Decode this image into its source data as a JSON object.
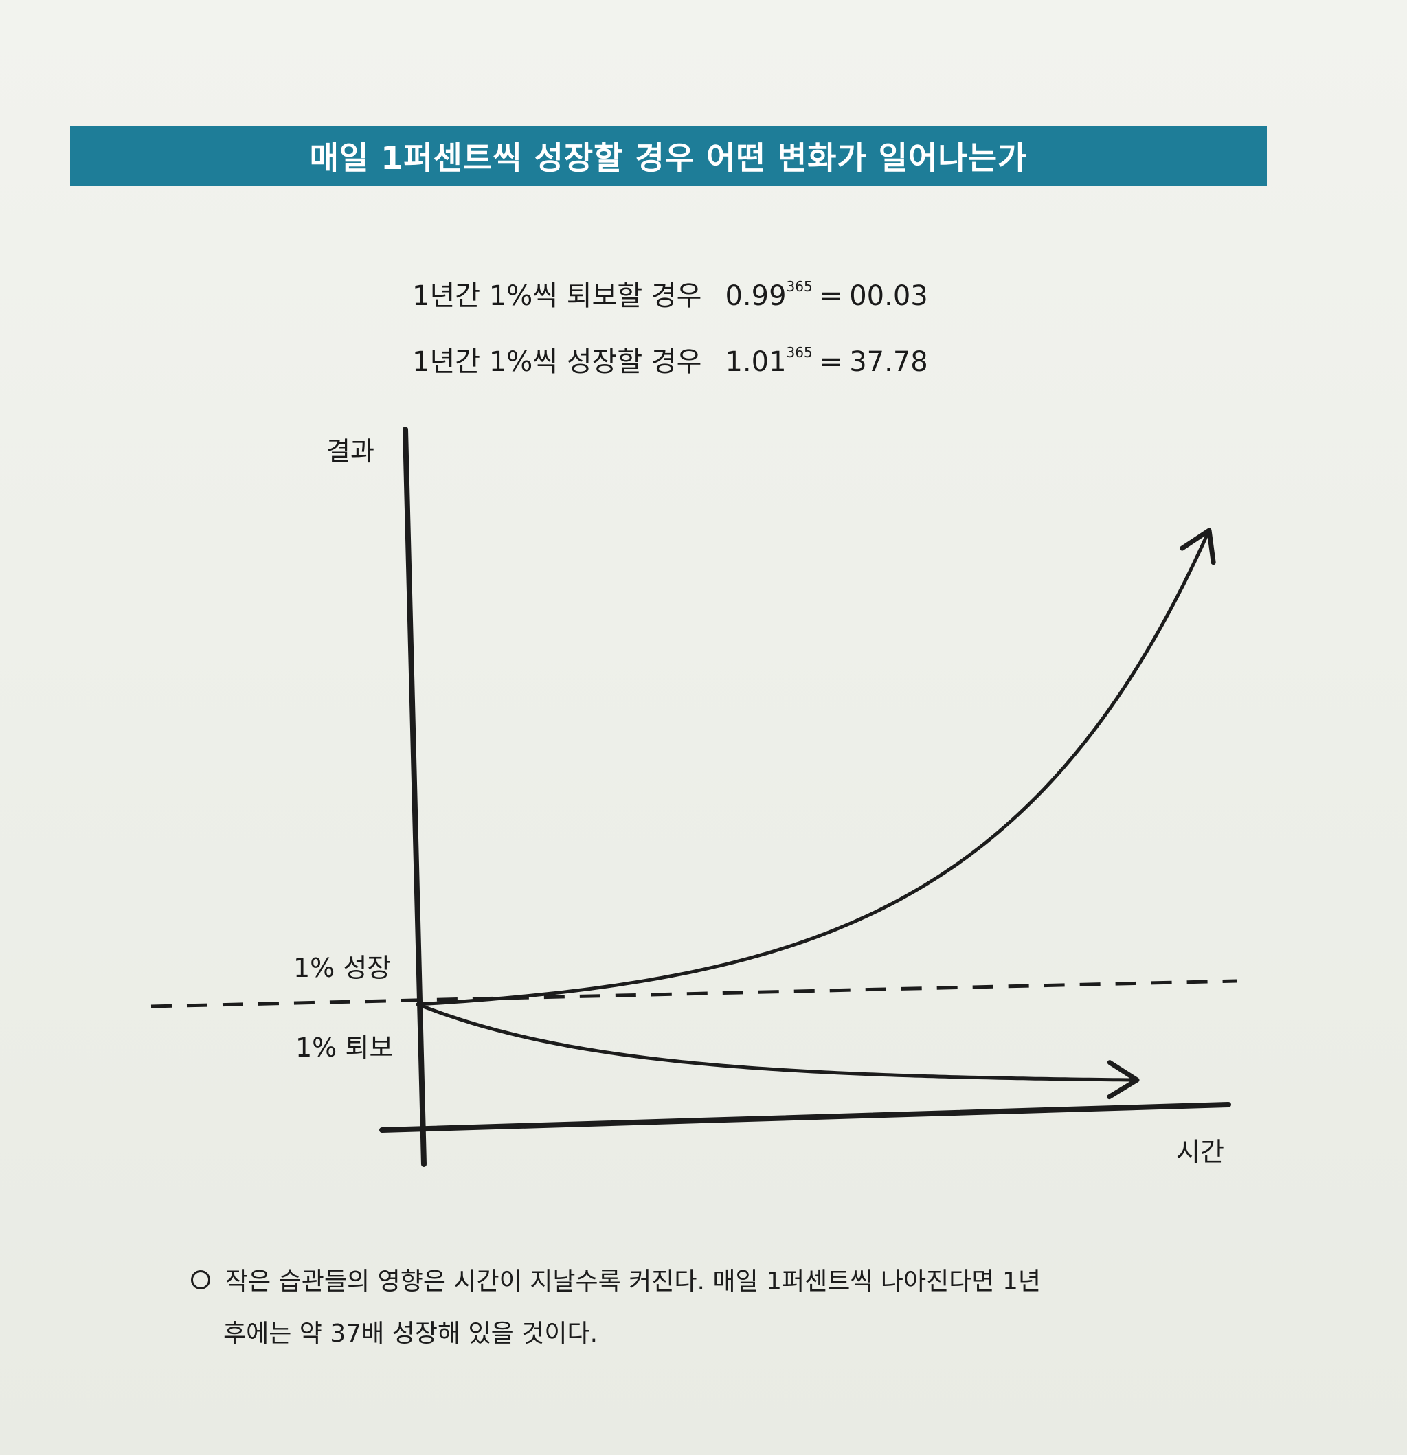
{
  "header": {
    "title": "매일 1퍼센트씩 성장할 경우 어떤 변화가 일어나는가"
  },
  "formulas": {
    "decline": {
      "label": "1년간 1%씩 퇴보할 경우",
      "base": "0.99",
      "exponent": "365",
      "equals": "=",
      "result": "00.03"
    },
    "growth": {
      "label": "1년간 1%씩 성장할 경우",
      "base": "1.01",
      "exponent": "365",
      "equals": "=",
      "result": "37.78"
    }
  },
  "chart_data": {
    "type": "line",
    "xlabel": "시간",
    "ylabel": "결과",
    "x": [
      0,
      365
    ],
    "series": [
      {
        "name": "1% 성장",
        "rate": 1.01,
        "start": 1,
        "end": 37.78
      },
      {
        "name": "1% 퇴보",
        "rate": 0.99,
        "start": 1,
        "end": 0.03
      }
    ],
    "baseline": {
      "value": 1,
      "style": "dashed"
    },
    "ticks": [],
    "grid": false,
    "legend": "none"
  },
  "colors": {
    "title_band": "#1e7d98",
    "title_text": "#ffffff",
    "ink": "#1c1c1c"
  },
  "caption": {
    "bullet_icon": "circle-bullet-icon",
    "line1": "작은 습관들의 영향은 시간이 지날수록 커진다. 매일 1퍼센트씩 나아진다면 1년",
    "line2": "후에는 약 37배 성장해 있을 것이다."
  }
}
